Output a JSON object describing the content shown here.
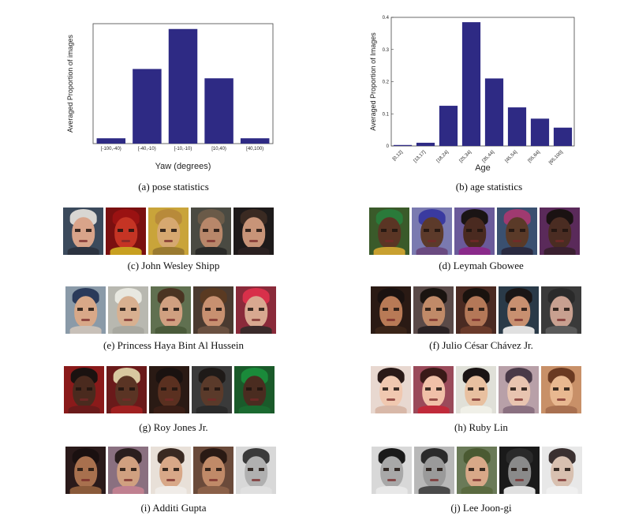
{
  "chart_data": [
    {
      "type": "bar",
      "xlabel": "Yaw (degrees)",
      "ylabel": "Averaged Proportion of images",
      "categories": [
        "[-100,-40)",
        "[-40,-10)",
        "[-10,-10)",
        "[10,40)",
        "[40,100)"
      ],
      "values": [
        0.02,
        0.28,
        0.43,
        0.245,
        0.02
      ],
      "ylim": [
        0,
        0.45
      ],
      "yticks": [],
      "bar_color": "#2e2a84"
    },
    {
      "type": "bar",
      "xlabel": "Age",
      "ylabel": "Averaged Proportion of Images",
      "categories": [
        "[0,12]",
        "[13,17]",
        "[18,24]",
        "[25,34]",
        "[35,44]",
        "[45,54]",
        "[55,64]",
        "[65,100]"
      ],
      "values": [
        0.003,
        0.01,
        0.125,
        0.385,
        0.21,
        0.12,
        0.085,
        0.057
      ],
      "ylim": [
        0,
        0.4
      ],
      "yticks": [
        "0",
        "0.1",
        "0.2",
        "0.3",
        "0.4"
      ],
      "bar_color": "#2e2a84"
    }
  ],
  "captions": {
    "a": "(a) pose statistics",
    "b": "(b) age statistics",
    "c": "(c) John Wesley Shipp",
    "d": "(d) Leymah Gbowee",
    "e": "(e) Princess Haya Bint Al Hussein",
    "f": "(f) Julio César Chávez Jr.",
    "g": "(g) Roy Jones Jr.",
    "h": "(h) Ruby Lin",
    "i": "(i) Additi Gupta",
    "j": "(j) Lee Joon-gi"
  },
  "face_rows": [
    {
      "id": "c",
      "faces": [
        {
          "bg": "#3b4a5c",
          "skin": "#d9a48a",
          "hair": "#d8d6d2",
          "neck": "#2c3340"
        },
        {
          "bg": "#7a1010",
          "skin": "#c53424",
          "hair": "#9a1212",
          "neck": "#c8a020"
        },
        {
          "bg": "#c9a43a",
          "skin": "#d6a870",
          "hair": "#b88a3a",
          "neck": "#9a7a30"
        },
        {
          "bg": "#4a4a42",
          "skin": "#b8876a",
          "hair": "#6a5a48",
          "neck": "#2a2a28"
        },
        {
          "bg": "#1e1a1a",
          "skin": "#c89478",
          "hair": "#3a2a22",
          "neck": "#2a2020"
        }
      ]
    },
    {
      "id": "d",
      "faces": [
        {
          "bg": "#3a5a2a",
          "skin": "#5a3524",
          "hair": "#2a7a3a",
          "neck": "#c8a030"
        },
        {
          "bg": "#7a7ab0",
          "skin": "#5c3a2a",
          "hair": "#3a3aa0",
          "neck": "#6a4a80"
        },
        {
          "bg": "#6a5a9a",
          "skin": "#4a2a20",
          "hair": "#1a1414",
          "neck": "#8a2a8a"
        },
        {
          "bg": "#3a5070",
          "skin": "#5a3a28",
          "hair": "#a03a70",
          "neck": "#2a2a40"
        },
        {
          "bg": "#5a2a5a",
          "skin": "#4a2c22",
          "hair": "#1a1212",
          "neck": "#3a2030"
        }
      ]
    },
    {
      "id": "e",
      "faces": [
        {
          "bg": "#8a9aa8",
          "skin": "#d8a888",
          "hair": "#2a3a5a",
          "neck": "#c8c0b8"
        },
        {
          "bg": "#b8b8b0",
          "skin": "#d8b090",
          "hair": "#e8e8e0",
          "neck": "#a8a8a0"
        },
        {
          "bg": "#607050",
          "skin": "#d0a080",
          "hair": "#4a3422",
          "neck": "#4a5a3a"
        },
        {
          "bg": "#4a3a30",
          "skin": "#c89070",
          "hair": "#5a3a22",
          "neck": "#6a5040"
        },
        {
          "bg": "#8a2a3a",
          "skin": "#d8a890",
          "hair": "#d8304a",
          "neck": "#3a2a2a"
        }
      ]
    },
    {
      "id": "f",
      "faces": [
        {
          "bg": "#2a1a14",
          "skin": "#b87a56",
          "hair": "#1a1210",
          "neck": "#3a2418"
        },
        {
          "bg": "#5a4a48",
          "skin": "#c08a68",
          "hair": "#1a1410",
          "neck": "#2a2224"
        },
        {
          "bg": "#4a2a22",
          "skin": "#b47858",
          "hair": "#1a120e",
          "neck": "#6a3a2a"
        },
        {
          "bg": "#2a3a48",
          "skin": "#c89070",
          "hair": "#1a1616",
          "neck": "#e0e0e0"
        },
        {
          "bg": "#3a3a3a",
          "skin": "#c8a090",
          "hair": "#2a2a2a",
          "neck": "#5a5a5a"
        }
      ]
    },
    {
      "id": "g",
      "faces": [
        {
          "bg": "#8a1a1a",
          "skin": "#4a2a1e",
          "hair": "#1a1210",
          "neck": "#6a1a1a"
        },
        {
          "bg": "#6a1a1a",
          "skin": "#5a3424",
          "hair": "#d8c8a0",
          "neck": "#a02020"
        },
        {
          "bg": "#2a1a14",
          "skin": "#5a3020",
          "hair": "#1a1210",
          "neck": "#3a1e16"
        },
        {
          "bg": "#3a3a3a",
          "skin": "#5a3a2a",
          "hair": "#1e1a18",
          "neck": "#2a2a2a"
        },
        {
          "bg": "#1a5a2a",
          "skin": "#4a2c20",
          "hair": "#1a8a3a",
          "neck": "#1a6a30"
        }
      ]
    },
    {
      "id": "h",
      "faces": [
        {
          "bg": "#e8d8d0",
          "skin": "#f0c8b0",
          "hair": "#2a1a18",
          "neck": "#d8b8a8"
        },
        {
          "bg": "#9a4a5a",
          "skin": "#f0c0a8",
          "hair": "#3a1a18",
          "neck": "#c02a3a"
        },
        {
          "bg": "#e0e0d8",
          "skin": "#e8c0a0",
          "hair": "#1a1414",
          "neck": "#f0f0e8"
        },
        {
          "bg": "#b8a0a8",
          "skin": "#e8c4b0",
          "hair": "#4a3a48",
          "neck": "#8a7080"
        },
        {
          "bg": "#c89068",
          "skin": "#e8b890",
          "hair": "#6a3a22",
          "neck": "#a87050"
        }
      ]
    },
    {
      "id": "i",
      "faces": [
        {
          "bg": "#2a1a1a",
          "skin": "#a8704e",
          "hair": "#1a1010",
          "neck": "#8a5a3a"
        },
        {
          "bg": "#8a7080",
          "skin": "#d0a080",
          "hair": "#2a1e1e",
          "neck": "#c08090"
        },
        {
          "bg": "#e8e0d8",
          "skin": "#d8a888",
          "hair": "#3a2a22",
          "neck": "#f0ece8"
        },
        {
          "bg": "#6a4a3a",
          "skin": "#c08a68",
          "hair": "#2a1a14",
          "neck": "#8a6048"
        },
        {
          "bg": "#d8d8d8",
          "skin": "#b0b0b0",
          "hair": "#3a3a3a",
          "neck": "#e0e0e0"
        }
      ]
    },
    {
      "id": "j",
      "faces": [
        {
          "bg": "#d8d8d8",
          "skin": "#a8a8a8",
          "hair": "#1a1a1a",
          "neck": "#e8e8e8"
        },
        {
          "bg": "#b8b8b8",
          "skin": "#9a9a9a",
          "hair": "#2a2a2a",
          "neck": "#4a4a4a"
        },
        {
          "bg": "#6a7a58",
          "skin": "#d8a888",
          "hair": "#4a5a32",
          "neck": "#5a6a40"
        },
        {
          "bg": "#1a1a1a",
          "skin": "#8a8a8a",
          "hair": "#2a2a2a",
          "neck": "#e0e0e0"
        },
        {
          "bg": "#e8e8e8",
          "skin": "#d8c0b0",
          "hair": "#3a3030",
          "neck": "#f0f0f0"
        }
      ]
    }
  ]
}
